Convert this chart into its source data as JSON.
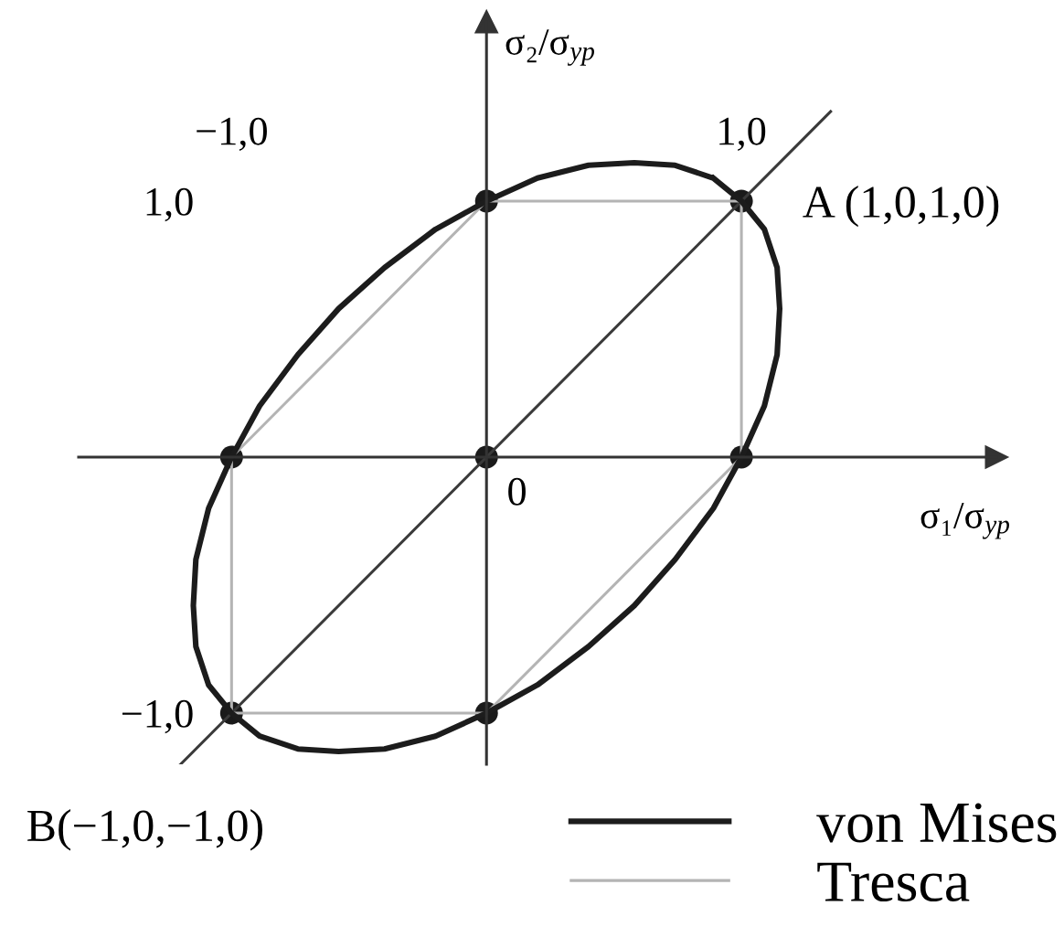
{
  "chart_data": {
    "type": "line",
    "xlabel": "σ₁/σ$_{yp}$",
    "ylabel": "σ₂/σ$_{yp}$",
    "xlim": [
      -1.6,
      2.0
    ],
    "ylim": [
      -1.2,
      1.7
    ],
    "xticks": [
      {
        "value": -1,
        "label": "−1,0"
      },
      {
        "value": 1,
        "label": "1,0"
      }
    ],
    "yticks": [
      {
        "value": -1,
        "label": "−1,0"
      },
      {
        "value": 1,
        "label": "1,0"
      }
    ],
    "legend": "bottom right",
    "series": [
      {
        "name": "von Mises",
        "color": "#1c1c1c",
        "line_style": "solid",
        "x": [
          1.0,
          0.89,
          0.74,
          0.58,
          0.4,
          0.2,
          0.0,
          -0.2,
          -0.4,
          -0.58,
          -0.74,
          -0.89,
          -1.0,
          -1.09,
          -1.14,
          -1.15,
          -1.14,
          -1.09,
          -1.0,
          -0.89,
          -0.74,
          -0.58,
          -0.4,
          -0.2,
          0.0,
          0.2,
          0.4,
          0.58,
          0.74,
          0.89,
          1.0,
          1.09,
          1.14,
          1.15,
          1.14,
          1.09,
          1.0,
          0.89
        ],
        "values": [
          1.0,
          1.09,
          1.14,
          1.15,
          1.14,
          1.09,
          1.0,
          0.89,
          0.74,
          0.58,
          0.4,
          0.2,
          0.0,
          -0.2,
          -0.4,
          -0.58,
          -0.74,
          -0.89,
          -1.0,
          -1.09,
          -1.14,
          -1.15,
          -1.14,
          -1.09,
          -1.0,
          -0.89,
          -0.74,
          -0.58,
          -0.4,
          -0.2,
          0.0,
          0.2,
          0.4,
          0.58,
          0.74,
          0.89,
          1.0,
          1.09
        ]
      },
      {
        "name": "Tresca",
        "color": "#b4b4b4",
        "line_style": "solid",
        "x": [
          1,
          1,
          0,
          -1,
          -1,
          0,
          1,
          1
        ],
        "values": [
          0,
          1,
          1,
          0,
          -1,
          -1,
          0,
          1
        ]
      },
      {
        "color": "#3a3a3a",
        "line_style": "solid",
        "x": [
          -1.2,
          1.35
        ],
        "values": [
          -1.2,
          1.35
        ]
      },
      {
        "type": "scatter",
        "color": "#1a1a1a",
        "marker": "circle",
        "x": [
          1,
          0,
          -1,
          0,
          1,
          -1,
          0
        ],
        "values": [
          0,
          1,
          0,
          -1,
          1,
          -1,
          0
        ]
      }
    ],
    "annotations": [
      {
        "text": "A (1,0,1,0)",
        "x": 1,
        "y": 1
      },
      {
        "text": "B(−1,0,−1,0)",
        "x": -1,
        "y": -1
      },
      {
        "text": "0",
        "x": 0,
        "y": 0
      }
    ]
  }
}
